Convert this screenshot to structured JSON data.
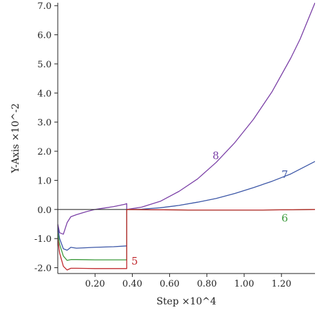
{
  "chart_data": {
    "type": "line",
    "title": "",
    "xlabel": "Step ×10^4",
    "ylabel": "Y-Axis ×10^-2",
    "xlim": [
      0,
      1.38
    ],
    "ylim": [
      -2.2,
      7.1
    ],
    "x_ticks": [
      {
        "v": 0.2,
        "label": "0.20"
      },
      {
        "v": 0.4,
        "label": "0.40"
      },
      {
        "v": 0.6,
        "label": "0.60"
      },
      {
        "v": 0.8,
        "label": "0.80"
      },
      {
        "v": 1.0,
        "label": "1.00"
      },
      {
        "v": 1.2,
        "label": "1.20"
      }
    ],
    "y_ticks": [
      {
        "v": -2.0,
        "label": "-2.0"
      },
      {
        "v": -1.0,
        "label": "-1.0"
      },
      {
        "v": 0.0,
        "label": "0.0"
      },
      {
        "v": 1.0,
        "label": "1.0"
      },
      {
        "v": 2.0,
        "label": "2.0"
      },
      {
        "v": 3.0,
        "label": "3.0"
      },
      {
        "v": 4.0,
        "label": "4.0"
      },
      {
        "v": 5.0,
        "label": "5.0"
      },
      {
        "v": 6.0,
        "label": "6.0"
      },
      {
        "v": 7.0,
        "label": "7.0"
      }
    ],
    "grid": false,
    "zero_line": {
      "y": 0,
      "x_range": [
        0,
        0.37
      ],
      "color": "#333333"
    },
    "series": [
      {
        "name": "8",
        "color": "#7a3fa6",
        "points": [
          [
            0,
            -0.5
          ],
          [
            0.01,
            -0.8
          ],
          [
            0.03,
            -0.85
          ],
          [
            0.05,
            -0.45
          ],
          [
            0.07,
            -0.25
          ],
          [
            0.1,
            -0.18
          ],
          [
            0.15,
            -0.08
          ],
          [
            0.2,
            0.0
          ],
          [
            0.25,
            0.05
          ],
          [
            0.3,
            0.1
          ],
          [
            0.36,
            0.18
          ],
          [
            0.37,
            0.2
          ],
          [
            0.37,
            0.0
          ],
          [
            0.45,
            0.08
          ],
          [
            0.55,
            0.28
          ],
          [
            0.65,
            0.62
          ],
          [
            0.75,
            1.05
          ],
          [
            0.85,
            1.62
          ],
          [
            0.95,
            2.3
          ],
          [
            1.05,
            3.1
          ],
          [
            1.15,
            4.05
          ],
          [
            1.25,
            5.2
          ],
          [
            1.3,
            5.85
          ],
          [
            1.38,
            7.1
          ]
        ],
        "label_at": [
          0.83,
          1.85
        ]
      },
      {
        "name": "7",
        "color": "#3a55a6",
        "points": [
          [
            0,
            -0.6
          ],
          [
            0.01,
            -1.0
          ],
          [
            0.03,
            -1.35
          ],
          [
            0.05,
            -1.4
          ],
          [
            0.07,
            -1.3
          ],
          [
            0.1,
            -1.33
          ],
          [
            0.2,
            -1.3
          ],
          [
            0.3,
            -1.28
          ],
          [
            0.37,
            -1.25
          ],
          [
            0.37,
            0.0
          ],
          [
            0.45,
            0.01
          ],
          [
            0.55,
            0.06
          ],
          [
            0.65,
            0.14
          ],
          [
            0.75,
            0.25
          ],
          [
            0.85,
            0.38
          ],
          [
            0.95,
            0.55
          ],
          [
            1.05,
            0.75
          ],
          [
            1.15,
            0.97
          ],
          [
            1.25,
            1.22
          ],
          [
            1.38,
            1.65
          ]
        ],
        "label_at": [
          1.2,
          1.2
        ]
      },
      {
        "name": "6",
        "color": "#3a9a3a",
        "points": [
          [
            0,
            -0.8
          ],
          [
            0.01,
            -1.2
          ],
          [
            0.03,
            -1.6
          ],
          [
            0.05,
            -1.75
          ],
          [
            0.07,
            -1.72
          ],
          [
            0.1,
            -1.72
          ],
          [
            0.2,
            -1.73
          ],
          [
            0.3,
            -1.73
          ],
          [
            0.37,
            -1.73
          ],
          [
            0.37,
            0.0
          ],
          [
            0.5,
            -0.01
          ],
          [
            0.7,
            -0.02
          ],
          [
            0.9,
            -0.02
          ],
          [
            1.1,
            -0.02
          ],
          [
            1.38,
            0.0
          ]
        ],
        "label_at": [
          1.2,
          -0.3
        ]
      },
      {
        "name": "5",
        "color": "#c0282d",
        "points": [
          [
            0,
            -1.0
          ],
          [
            0.01,
            -1.5
          ],
          [
            0.03,
            -1.95
          ],
          [
            0.05,
            -2.08
          ],
          [
            0.07,
            -2.02
          ],
          [
            0.1,
            -2.02
          ],
          [
            0.2,
            -2.03
          ],
          [
            0.3,
            -2.03
          ],
          [
            0.37,
            -2.03
          ],
          [
            0.37,
            0.0
          ],
          [
            0.5,
            -0.01
          ],
          [
            0.7,
            -0.02
          ],
          [
            0.9,
            -0.02
          ],
          [
            1.1,
            -0.02
          ],
          [
            1.38,
            0.0
          ]
        ],
        "label_at": [
          0.395,
          -1.78
        ]
      }
    ]
  }
}
